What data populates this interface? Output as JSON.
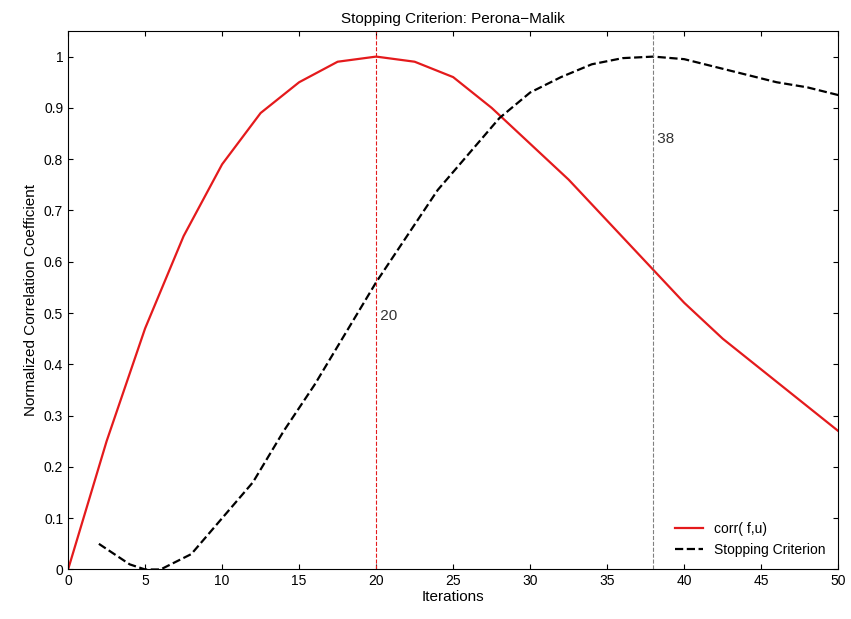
{
  "chart_data": {
    "type": "line",
    "title": "Stopping Criterion: Perona−Malik",
    "x_label": "Iterations",
    "y_label": "Normalized Correlation Coefficient",
    "series": [
      {
        "name": "corr( f,u)",
        "color": "#e41a1c",
        "line_style": "solid",
        "x": [
          0,
          2.5,
          5,
          7.5,
          10,
          12.5,
          15,
          17.5,
          20,
          22.5,
          25,
          27.5,
          30,
          32.5,
          35,
          37.5,
          40,
          42.5,
          45,
          47.5,
          50
        ],
        "values": [
          0,
          0.25,
          0.47,
          0.65,
          0.79,
          0.89,
          0.95,
          0.99,
          1.0,
          0.99,
          0.96,
          0.9,
          0.83,
          0.76,
          0.68,
          0.6,
          0.52,
          0.45,
          0.39,
          0.33,
          0.27
        ]
      },
      {
        "name": "Stopping Criterion",
        "color": "#000000",
        "line_style": "dashed",
        "x": [
          2,
          4,
          5,
          6,
          8,
          10,
          12,
          14,
          16,
          18,
          20,
          22,
          24,
          26,
          28,
          30,
          32,
          34,
          36,
          38,
          40,
          42,
          44,
          46,
          48,
          50
        ],
        "values": [
          0.05,
          0.01,
          0.0,
          0.0,
          0.03,
          0.1,
          0.17,
          0.27,
          0.36,
          0.46,
          0.56,
          0.65,
          0.74,
          0.81,
          0.88,
          0.93,
          0.96,
          0.985,
          0.997,
          1.0,
          0.995,
          0.98,
          0.965,
          0.95,
          0.94,
          0.925
        ]
      }
    ],
    "annotations": [
      {
        "x": 20,
        "text": "20",
        "color": "#e41a1c"
      },
      {
        "x": 38,
        "text": "38",
        "color": "#808080"
      }
    ],
    "xlim": [
      0,
      50
    ],
    "xticks": [
      0,
      5,
      10,
      15,
      20,
      25,
      30,
      35,
      40,
      45,
      50
    ],
    "ylim": [
      0,
      1.05
    ],
    "yticks": [
      0,
      0.1,
      0.2,
      0.3,
      0.4,
      0.5,
      0.6,
      0.7,
      0.8,
      0.9,
      1
    ],
    "grid": false,
    "legend": "lower right"
  }
}
